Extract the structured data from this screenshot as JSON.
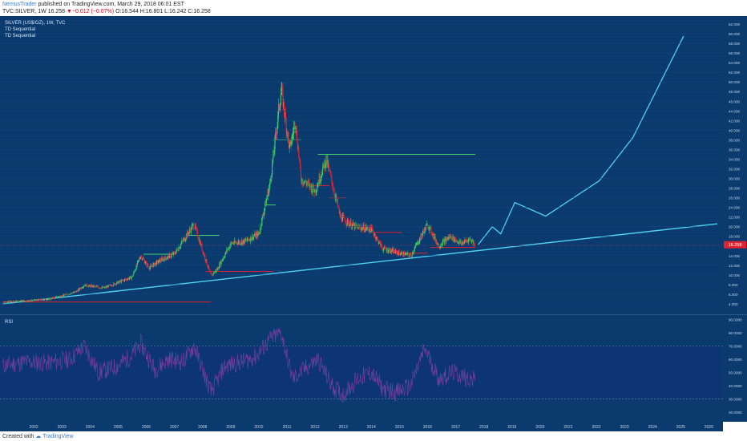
{
  "header": {
    "author": "NemusTrader",
    "published_text": "published on TradingView.com, March 29, 2018 06:01 EST",
    "symbol_line": "TVC:SILVER, 1W 16.258",
    "change_text": "▼−0.012 (−0.07%)",
    "ohlc_text": "O:16.544 H:16.801 L:16.242 C:16.258"
  },
  "legend": {
    "title": "SILVER (US$/OZ), 1W, TVC",
    "indicator1": "TD Sequential",
    "indicator2": "TD Sequential"
  },
  "rsi_label": "RSI",
  "footer": {
    "created_with": "Created with",
    "brand": "TradingView"
  },
  "price_label": "16.258",
  "colors": {
    "background": "#0b3a6e",
    "rsi_background": "#0e3573",
    "trendline": "#4fd3f5",
    "up_candle": "#3ecf6a",
    "down_candle": "#e2222f",
    "rsi_line": "#8a3fa8",
    "price_tag": "#e2222f"
  },
  "chart_data": [
    {
      "type": "line",
      "name": "price",
      "x_ticks": [
        "2002",
        "2003",
        "2004",
        "2005",
        "2006",
        "2007",
        "2008",
        "2009",
        "2010",
        "2011",
        "2012",
        "2013",
        "2014",
        "2015",
        "2016",
        "2017",
        "2018",
        "2019",
        "2020",
        "2021",
        "2022",
        "2023",
        "2024",
        "2025",
        "2026"
      ],
      "y_ticks": [
        4,
        6,
        8,
        10,
        12,
        14,
        16,
        18,
        20,
        22,
        24,
        26,
        28,
        30,
        32,
        34,
        36,
        38,
        40,
        42,
        44,
        46,
        48,
        50,
        52,
        54,
        56,
        58,
        60,
        62
      ],
      "ylim": [
        2.5,
        63
      ],
      "xlim": [
        2001.3,
        2027
      ],
      "current_price": 16.258,
      "price_history": {
        "x": [
          2001.4,
          2002.0,
          2003.0,
          2004.0,
          2004.3,
          2005.0,
          2006.0,
          2006.3,
          2006.6,
          2007.0,
          2007.5,
          2008.2,
          2008.8,
          2009.0,
          2009.5,
          2010.0,
          2010.5,
          2010.9,
          2011.3,
          2011.6,
          2011.8,
          2012.0,
          2012.5,
          2012.9,
          2013.4,
          2013.9,
          2014.5,
          2014.9,
          2015.5,
          2015.9,
          2016.5,
          2016.9,
          2017.3,
          2017.7,
          2018.0,
          2018.2
        ],
        "y": [
          4.4,
          4.6,
          4.9,
          6.5,
          7.9,
          7.3,
          9.6,
          14.0,
          11.5,
          13.0,
          14.4,
          20.5,
          9.8,
          11.0,
          16.5,
          17.0,
          18.5,
          29.0,
          48.5,
          36.0,
          42.0,
          30.0,
          27.5,
          34.0,
          22.0,
          20.0,
          19.5,
          15.5,
          14.5,
          14.0,
          20.5,
          16.0,
          18.0,
          16.5,
          17.5,
          16.26
        ]
      },
      "projection": {
        "x": [
          2018.3,
          2018.8,
          2019.1,
          2019.6,
          2020.7,
          2022.6,
          2023.8,
          2025.6
        ],
        "y": [
          16.3,
          20.0,
          18.5,
          25.0,
          22.2,
          29.5,
          38.5,
          59.5
        ]
      },
      "trendline": {
        "x": [
          2001.4,
          2026.8
        ],
        "y": [
          4.0,
          20.6
        ]
      },
      "support_levels": [
        {
          "y": 4.4,
          "x_from": 2001.4,
          "x_to": 2008.8,
          "color": "#e2222f"
        },
        {
          "y": 14.3,
          "x_from": 2006.4,
          "x_to": 2007.4,
          "color": "#3ecf6a"
        },
        {
          "y": 18.2,
          "x_from": 2008.0,
          "x_to": 2009.1,
          "color": "#3ecf6a"
        },
        {
          "y": 10.7,
          "x_from": 2008.6,
          "x_to": 2011.0,
          "color": "#e2222f"
        },
        {
          "y": 24.5,
          "x_from": 2010.7,
          "x_to": 2011.1,
          "color": "#3ecf6a"
        },
        {
          "y": 38.0,
          "x_from": 2011.0,
          "x_to": 2012.0,
          "color": "#3ecf6a"
        },
        {
          "y": 35.0,
          "x_from": 2012.6,
          "x_to": 2018.2,
          "color": "#3ecf6a"
        },
        {
          "y": 28.5,
          "x_from": 2012.3,
          "x_to": 2013.0,
          "color": "#e2222f"
        },
        {
          "y": 26.0,
          "x_from": 2013.0,
          "x_to": 2013.6,
          "color": "#e2222f"
        },
        {
          "y": 18.8,
          "x_from": 2014.6,
          "x_to": 2015.6,
          "color": "#e2222f"
        },
        {
          "y": 14.5,
          "x_from": 2015.4,
          "x_to": 2016.5,
          "color": "#e2222f"
        },
        {
          "y": 15.7,
          "x_from": 2016.6,
          "x_to": 2018.2,
          "color": "#e2222f"
        }
      ]
    },
    {
      "type": "line",
      "name": "RSI",
      "y_ticks": [
        20,
        30,
        40,
        50,
        60,
        70,
        80,
        90
      ],
      "ylim": [
        14,
        92
      ],
      "bands": [
        30,
        70
      ],
      "x": [
        2001.4,
        2002.2,
        2003.0,
        2003.8,
        2004.3,
        2004.8,
        2005.4,
        2006.0,
        2006.3,
        2006.8,
        2007.3,
        2007.8,
        2008.2,
        2008.8,
        2009.3,
        2009.9,
        2010.4,
        2010.9,
        2011.3,
        2011.7,
        2012.1,
        2012.6,
        2013.1,
        2013.5,
        2014.0,
        2014.5,
        2014.9,
        2015.4,
        2015.9,
        2016.4,
        2016.9,
        2017.4,
        2017.9,
        2018.2
      ],
      "y": [
        55,
        58,
        57,
        60,
        70,
        50,
        54,
        63,
        72,
        52,
        60,
        58,
        70,
        35,
        55,
        58,
        62,
        75,
        80,
        45,
        52,
        60,
        40,
        33,
        45,
        50,
        38,
        35,
        40,
        68,
        45,
        50,
        46,
        44
      ]
    }
  ]
}
